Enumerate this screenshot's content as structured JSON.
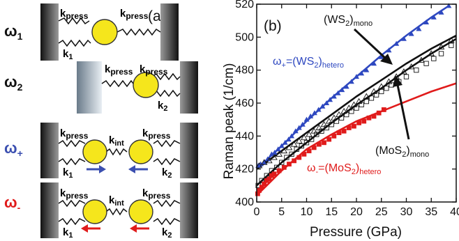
{
  "figure": {
    "panel_a": {
      "label": "(a)",
      "k_press": "k",
      "k_press_sub": "press",
      "k_int": "k",
      "k_int_sub": "int",
      "k1": "k",
      "k1_sub": "1",
      "k2": "k",
      "k2_sub": "2",
      "omega": "ω",
      "rows": [
        {
          "sub": "1",
          "color": "#111111"
        },
        {
          "sub": "2",
          "color": "#111111"
        },
        {
          "sub": "+",
          "color": "#3b4fb0"
        },
        {
          "sub": "-",
          "color": "#e01b1b"
        }
      ],
      "colors": {
        "ball": "#f5e61c",
        "arrow_plus": "#3b4fb0",
        "arrow_minus": "#e01b1b"
      }
    },
    "panel_b": {
      "label": "(b)",
      "annotations": {
        "ws2_mono": {
          "main": "(WS",
          "sub": "2",
          "tail": ")",
          "sub2": "mono"
        },
        "mos2_mono": {
          "main": "(MoS",
          "sub": "2",
          "tail": ")",
          "sub2": "mono"
        },
        "omega_plus": {
          "main": "ω",
          "sub": "+",
          "mid": "=(WS",
          "sub2": "2",
          "tail": ")",
          "sub3": "hetero"
        },
        "omega_minus": {
          "main": "ω",
          "sub": "-",
          "mid": "=(MoS",
          "sub2": "2",
          "tail": ")",
          "sub3": "hetero"
        }
      }
    }
  },
  "chart_data": {
    "type": "scatter",
    "xlabel": "Pressure (GPa)",
    "ylabel": "Raman peak (1/cm)",
    "xlim": [
      0,
      40
    ],
    "ylim": [
      400,
      520
    ],
    "xticks": [
      0,
      5,
      10,
      15,
      20,
      25,
      30,
      35,
      40
    ],
    "yticks": [
      400,
      420,
      440,
      460,
      480,
      500,
      520
    ],
    "grid": false,
    "series": [
      {
        "color": "#2e48c0",
        "marker": "triangle-filled",
        "x": [
          0.3,
          0.8,
          1.5,
          2.2,
          3,
          3.6,
          4.3,
          5,
          5.7,
          6.4,
          7,
          7.8,
          8.5,
          9.2,
          10,
          10.8,
          11.6,
          12.4,
          13.2,
          14,
          14.7,
          15.5,
          16.3,
          17.1,
          18,
          19,
          20,
          21,
          22,
          23.5,
          25,
          26.5,
          28,
          29.5,
          31,
          32.5,
          34,
          35.5,
          37,
          38.5
        ],
        "y": [
          422,
          423,
          424,
          426,
          429,
          430,
          432,
          434,
          436,
          438,
          440,
          443,
          445,
          447,
          450,
          452,
          454,
          456,
          458,
          460,
          462,
          464,
          466,
          468,
          470,
          473,
          476,
          478,
          480,
          484,
          488,
          492,
          496,
          499,
          502,
          505,
          509,
          512,
          515,
          519
        ]
      },
      {
        "color": "#111111",
        "marker": "triangle-open",
        "x": [
          0.5,
          1.5,
          2.5,
          3.5,
          4.5,
          5.5,
          6.5,
          7.5,
          8.5,
          9.5,
          10.5,
          11.5,
          12.5,
          13.5,
          14.5,
          15.5,
          16.5,
          17.5,
          18.5,
          19.5,
          20.5,
          22,
          23.5,
          25,
          26.5,
          28,
          29.5,
          31,
          33,
          35,
          37,
          39
        ],
        "y": [
          422,
          424,
          425,
          427,
          429,
          431,
          433,
          435,
          437,
          439,
          441,
          443,
          445,
          447,
          449,
          451,
          453,
          455,
          457,
          459,
          461,
          464,
          467,
          470,
          473,
          476,
          479,
          482,
          486,
          490,
          494,
          498
        ]
      },
      {
        "color": "#111111",
        "marker": "square-open",
        "x": [
          0.3,
          1,
          2,
          3,
          4,
          5,
          6,
          7,
          8,
          9,
          10,
          11,
          12,
          13,
          14,
          15,
          16,
          17,
          18,
          19,
          20,
          21,
          22,
          23,
          24,
          25,
          26,
          27,
          28.5,
          30,
          32,
          34,
          35.5,
          37,
          39
        ],
        "y": [
          410,
          413,
          416,
          419,
          421,
          424,
          427,
          429,
          432,
          434,
          436,
          438,
          441,
          443,
          445,
          447,
          449,
          451,
          453,
          455,
          457,
          459,
          461,
          463,
          465,
          467,
          469,
          471,
          473,
          476,
          480,
          484,
          487,
          490,
          495
        ]
      },
      {
        "color": "#e01b1b",
        "marker": "square-filled",
        "x": [
          0.2,
          0.5,
          1,
          1.5,
          2,
          2.5,
          3,
          3.5,
          4.5,
          5.5,
          6.5,
          7.5,
          8.5,
          9.5,
          10.5,
          11.5,
          12.5,
          13.5,
          14.5,
          15.5,
          16.5,
          17.5,
          18.5,
          19.5,
          20.5,
          21.5,
          22.5,
          23.5,
          24.5,
          25.5
        ],
        "y": [
          405,
          407,
          409,
          411,
          413,
          414,
          416,
          417,
          419,
          421,
          423,
          425,
          427,
          429,
          431,
          433,
          435,
          436,
          438,
          440,
          442,
          443,
          445,
          446,
          448,
          449,
          451,
          452,
          454,
          456
        ]
      }
    ],
    "lines": [
      {
        "color": "#2e48c0",
        "x": [
          0,
          5,
          10,
          15,
          20,
          25,
          30,
          35,
          38.5
        ],
        "y": [
          420,
          434,
          449,
          463,
          476,
          489,
          501,
          512,
          519
        ]
      },
      {
        "color": "#111111",
        "x": [
          0,
          5,
          10,
          15,
          20,
          25,
          30,
          35,
          40
        ],
        "y": [
          420,
          431,
          442,
          453,
          464,
          474,
          484,
          493,
          501
        ]
      },
      {
        "color": "#111111",
        "x": [
          0,
          5,
          10,
          15,
          20,
          25,
          30,
          35,
          40
        ],
        "y": [
          410,
          424,
          436,
          448,
          459,
          469,
          480,
          490,
          499
        ]
      },
      {
        "color": "#e01b1b",
        "x": [
          0,
          5,
          10,
          15,
          20,
          25,
          30,
          35,
          40
        ],
        "y": [
          404,
          419,
          432,
          441,
          449,
          455,
          461,
          467,
          472
        ]
      }
    ]
  }
}
